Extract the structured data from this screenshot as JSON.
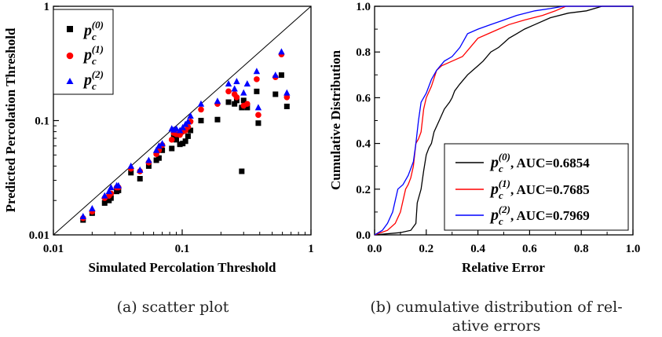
{
  "figure": {
    "caption_a": "(a) scatter plot",
    "caption_b_line1": "(b) cumulative distribution of rel-",
    "caption_b_line2": "ative errors"
  },
  "colors": {
    "p0": "#000000",
    "p1": "#ff0000",
    "p2": "#0000ff",
    "diagonal": "#000000"
  },
  "chart_data": [
    {
      "type": "scatter",
      "xscale": "log",
      "yscale": "log",
      "xlim": [
        0.01,
        1
      ],
      "ylim": [
        0.01,
        1
      ],
      "xlabel": "Simulated Percolation Threshold",
      "ylabel": "Predicted Percolation Threshold",
      "xticks": [
        0.01,
        0.1,
        1
      ],
      "xtick_labels": [
        "0.01",
        "0.1",
        "1"
      ],
      "yticks": [
        0.01,
        0.1,
        1
      ],
      "ytick_labels": [
        "0.01",
        "0.1",
        "1"
      ],
      "reference_line": "y = x",
      "legend_position": "top-left",
      "legend": [
        {
          "base": "p",
          "sub": "c",
          "sup": "(0)",
          "marker": "square",
          "color_key": "p0"
        },
        {
          "base": "p",
          "sub": "c",
          "sup": "(1)",
          "marker": "circle",
          "color_key": "p1"
        },
        {
          "base": "p",
          "sub": "c",
          "sup": "(2)",
          "marker": "triangle",
          "color_key": "p2"
        }
      ],
      "series": [
        {
          "name": "p_c^(0)",
          "marker": "square",
          "color_key": "p0",
          "x": [
            0.017,
            0.02,
            0.025,
            0.027,
            0.028,
            0.031,
            0.032,
            0.04,
            0.047,
            0.055,
            0.063,
            0.066,
            0.07,
            0.083,
            0.086,
            0.09,
            0.096,
            0.101,
            0.106,
            0.111,
            0.116,
            0.14,
            0.188,
            0.229,
            0.255,
            0.265,
            0.29,
            0.29,
            0.3,
            0.32,
            0.379,
            0.39,
            0.53,
            0.59,
            0.65
          ],
          "y": [
            0.0135,
            0.0155,
            0.019,
            0.02,
            0.021,
            0.024,
            0.0245,
            0.035,
            0.031,
            0.04,
            0.045,
            0.047,
            0.055,
            0.057,
            0.073,
            0.068,
            0.062,
            0.063,
            0.066,
            0.073,
            0.082,
            0.1,
            0.102,
            0.145,
            0.14,
            0.15,
            0.13,
            0.036,
            0.15,
            0.13,
            0.18,
            0.095,
            0.17,
            0.25,
            0.133
          ]
        },
        {
          "name": "p_c^(1)",
          "marker": "circle",
          "color_key": "p1",
          "x": [
            0.017,
            0.02,
            0.025,
            0.027,
            0.028,
            0.031,
            0.032,
            0.04,
            0.047,
            0.055,
            0.063,
            0.066,
            0.07,
            0.083,
            0.086,
            0.09,
            0.096,
            0.101,
            0.106,
            0.111,
            0.116,
            0.14,
            0.188,
            0.229,
            0.255,
            0.265,
            0.3,
            0.32,
            0.379,
            0.39,
            0.53,
            0.59,
            0.65
          ],
          "y": [
            0.014,
            0.016,
            0.021,
            0.022,
            0.023,
            0.026,
            0.026,
            0.038,
            0.036,
            0.043,
            0.051,
            0.055,
            0.061,
            0.068,
            0.078,
            0.076,
            0.075,
            0.08,
            0.082,
            0.088,
            0.098,
            0.125,
            0.14,
            0.18,
            0.17,
            0.16,
            0.135,
            0.14,
            0.23,
            0.112,
            0.24,
            0.38,
            0.16
          ]
        },
        {
          "name": "p_c^(2)",
          "marker": "triangle",
          "color_key": "p2",
          "x": [
            0.017,
            0.02,
            0.025,
            0.027,
            0.028,
            0.031,
            0.032,
            0.04,
            0.047,
            0.055,
            0.063,
            0.066,
            0.07,
            0.083,
            0.086,
            0.09,
            0.096,
            0.101,
            0.106,
            0.111,
            0.116,
            0.14,
            0.188,
            0.229,
            0.255,
            0.265,
            0.3,
            0.32,
            0.379,
            0.39,
            0.53,
            0.59,
            0.65
          ],
          "y": [
            0.0145,
            0.017,
            0.022,
            0.024,
            0.026,
            0.027,
            0.027,
            0.04,
            0.037,
            0.045,
            0.055,
            0.06,
            0.063,
            0.085,
            0.083,
            0.085,
            0.082,
            0.087,
            0.093,
            0.098,
            0.11,
            0.14,
            0.148,
            0.21,
            0.19,
            0.22,
            0.175,
            0.21,
            0.27,
            0.13,
            0.25,
            0.4,
            0.175
          ]
        }
      ]
    },
    {
      "type": "line",
      "xlim": [
        0,
        1
      ],
      "ylim": [
        0,
        1
      ],
      "xlabel": "Relative Error",
      "ylabel": "Cumulative Distribution",
      "xticks": [
        0,
        0.2,
        0.4,
        0.6,
        0.8,
        1.0
      ],
      "xtick_labels": [
        "0.0",
        "0.2",
        "0.4",
        "0.6",
        "0.8",
        "1.0"
      ],
      "yticks": [
        0,
        0.2,
        0.4,
        0.6,
        0.8,
        1.0
      ],
      "ytick_labels": [
        "0.0",
        "0.2",
        "0.4",
        "0.6",
        "0.8",
        "1.0"
      ],
      "legend_position": "bottom-right",
      "legend": [
        {
          "base": "p",
          "sub": "c",
          "sup": "(0)",
          "auc_text": ", AUC=0.6854",
          "color_key": "p0"
        },
        {
          "base": "p",
          "sub": "c",
          "sup": "(1)",
          "auc_text": ", AUC=0.7685",
          "color_key": "p1"
        },
        {
          "base": "p",
          "sub": "c",
          "sup": "(2)",
          "auc_text": ", AUC=0.7969",
          "color_key": "p2"
        }
      ],
      "series": [
        {
          "name": "p_c^(0)",
          "color_key": "p0",
          "x": [
            0,
            0.1,
            0.14,
            0.16,
            0.165,
            0.18,
            0.19,
            0.2,
            0.21,
            0.22,
            0.23,
            0.25,
            0.27,
            0.29,
            0.3,
            0.31,
            0.33,
            0.36,
            0.38,
            0.4,
            0.42,
            0.45,
            0.48,
            0.5,
            0.52,
            0.55,
            0.58,
            0.62,
            0.68,
            0.75,
            0.82,
            0.88,
            1.0
          ],
          "y": [
            0,
            0.01,
            0.02,
            0.05,
            0.14,
            0.2,
            0.28,
            0.35,
            0.38,
            0.4,
            0.45,
            0.5,
            0.55,
            0.58,
            0.6,
            0.63,
            0.66,
            0.7,
            0.72,
            0.74,
            0.76,
            0.8,
            0.82,
            0.84,
            0.86,
            0.88,
            0.9,
            0.92,
            0.95,
            0.97,
            0.98,
            1.0,
            1.0
          ]
        },
        {
          "name": "p_c^(1)",
          "color_key": "p1",
          "x": [
            0,
            0.05,
            0.08,
            0.1,
            0.11,
            0.12,
            0.13,
            0.14,
            0.15,
            0.16,
            0.17,
            0.18,
            0.19,
            0.2,
            0.22,
            0.24,
            0.26,
            0.3,
            0.34,
            0.37,
            0.4,
            0.44,
            0.48,
            0.52,
            0.58,
            0.65,
            0.7,
            0.74,
            1.0
          ],
          "y": [
            0,
            0.02,
            0.05,
            0.1,
            0.15,
            0.2,
            0.22,
            0.25,
            0.3,
            0.4,
            0.42,
            0.45,
            0.55,
            0.6,
            0.65,
            0.72,
            0.74,
            0.76,
            0.78,
            0.82,
            0.86,
            0.88,
            0.9,
            0.92,
            0.94,
            0.96,
            0.98,
            1.0,
            1.0
          ]
        },
        {
          "name": "p_c^(2)",
          "color_key": "p2",
          "x": [
            0,
            0.03,
            0.05,
            0.07,
            0.08,
            0.09,
            0.11,
            0.13,
            0.15,
            0.16,
            0.17,
            0.18,
            0.2,
            0.22,
            0.24,
            0.27,
            0.3,
            0.33,
            0.36,
            0.4,
            0.45,
            0.5,
            0.55,
            0.62,
            0.68,
            0.73,
            1.0
          ],
          "y": [
            0,
            0.02,
            0.05,
            0.1,
            0.15,
            0.2,
            0.22,
            0.26,
            0.32,
            0.4,
            0.5,
            0.58,
            0.62,
            0.68,
            0.72,
            0.76,
            0.78,
            0.82,
            0.88,
            0.9,
            0.92,
            0.94,
            0.96,
            0.98,
            0.99,
            1.0,
            1.0
          ]
        }
      ]
    }
  ]
}
